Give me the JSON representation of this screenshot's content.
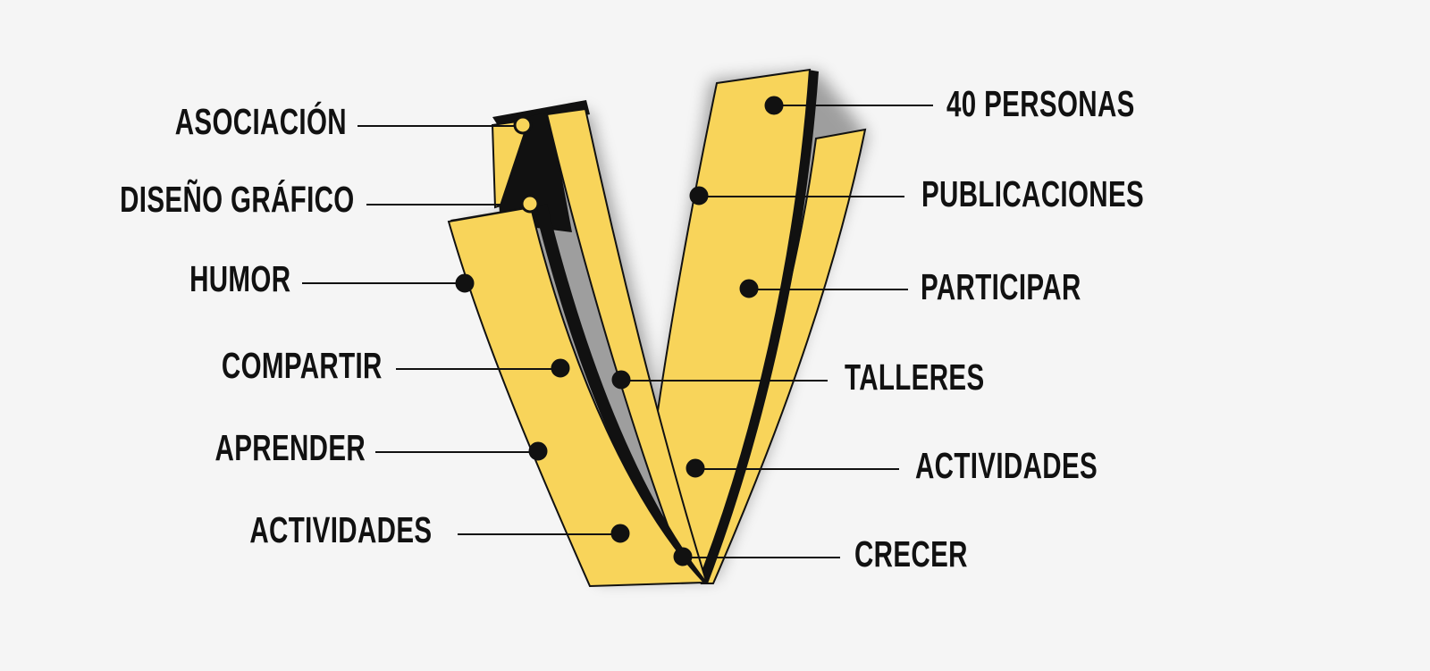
{
  "colors": {
    "background": "#f5f5f5",
    "ribbon_fill": "#f8d45a",
    "ribbon_dark": "#111111",
    "text": "#111111"
  },
  "labels": {
    "left": [
      "ASOCIACIÓN",
      "DISEÑO GRÁFICO",
      "HUMOR",
      "COMPARTIR",
      "APRENDER",
      "ACTIVIDADES"
    ],
    "right": [
      "40 PERSONAS",
      "PUBLICACIONES",
      "PARTICIPAR",
      "TALLERES",
      "ACTIVIDADES",
      "CRECER"
    ]
  }
}
